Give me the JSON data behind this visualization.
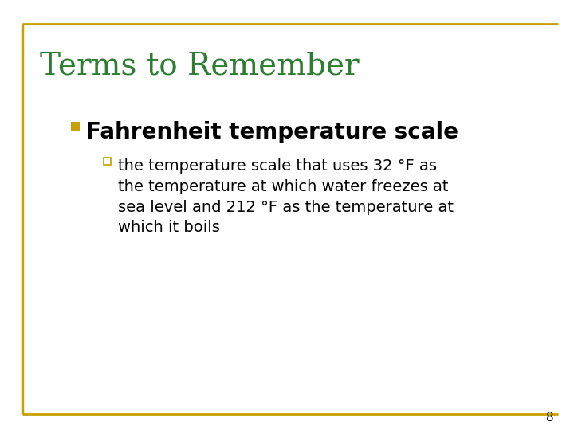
{
  "title": "Terms to Remember",
  "title_color": "#2E7D32",
  "title_fontsize": 28,
  "bullet1_text": "Fahrenheit temperature scale",
  "bullet1_color": "#000000",
  "bullet1_fontsize": 20,
  "bullet1_marker_color": "#C8A000",
  "bullet2_text": "the temperature scale that uses 32 °F as\nthe temperature at which water freezes at\nsea level and 212 °F as the temperature at\nwhich it boils",
  "bullet2_color": "#000000",
  "bullet2_fontsize": 14,
  "bullet2_marker_color": "#C8A000",
  "border_color": "#C8A000",
  "background_color": "#ffffff",
  "page_number": "8",
  "page_number_color": "#000000",
  "page_number_fontsize": 11
}
